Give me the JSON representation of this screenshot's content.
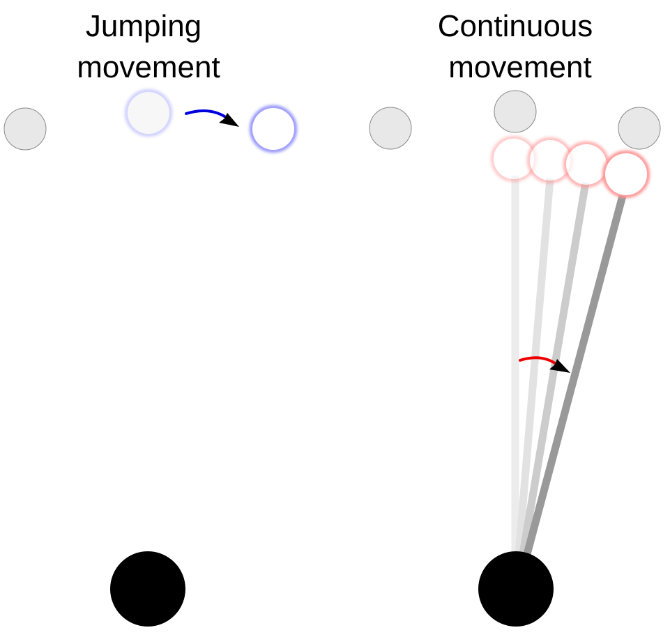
{
  "panels": {
    "jumping": {
      "title_line1": "Jumping",
      "title_line2": "movement",
      "arrow_color": "#0000dd",
      "glow_color": "#9090ff"
    },
    "continuous": {
      "title_line1": "Continuous",
      "title_line2": "movement",
      "arrow_color": "#ee0000",
      "glow_color": "#ff9090"
    }
  },
  "colors": {
    "target_fill": "#e8e8e8",
    "target_stroke": "#8a8a8a",
    "fixation_fill": "#000000",
    "background": "#ffffff",
    "arrowhead": "#000000"
  }
}
